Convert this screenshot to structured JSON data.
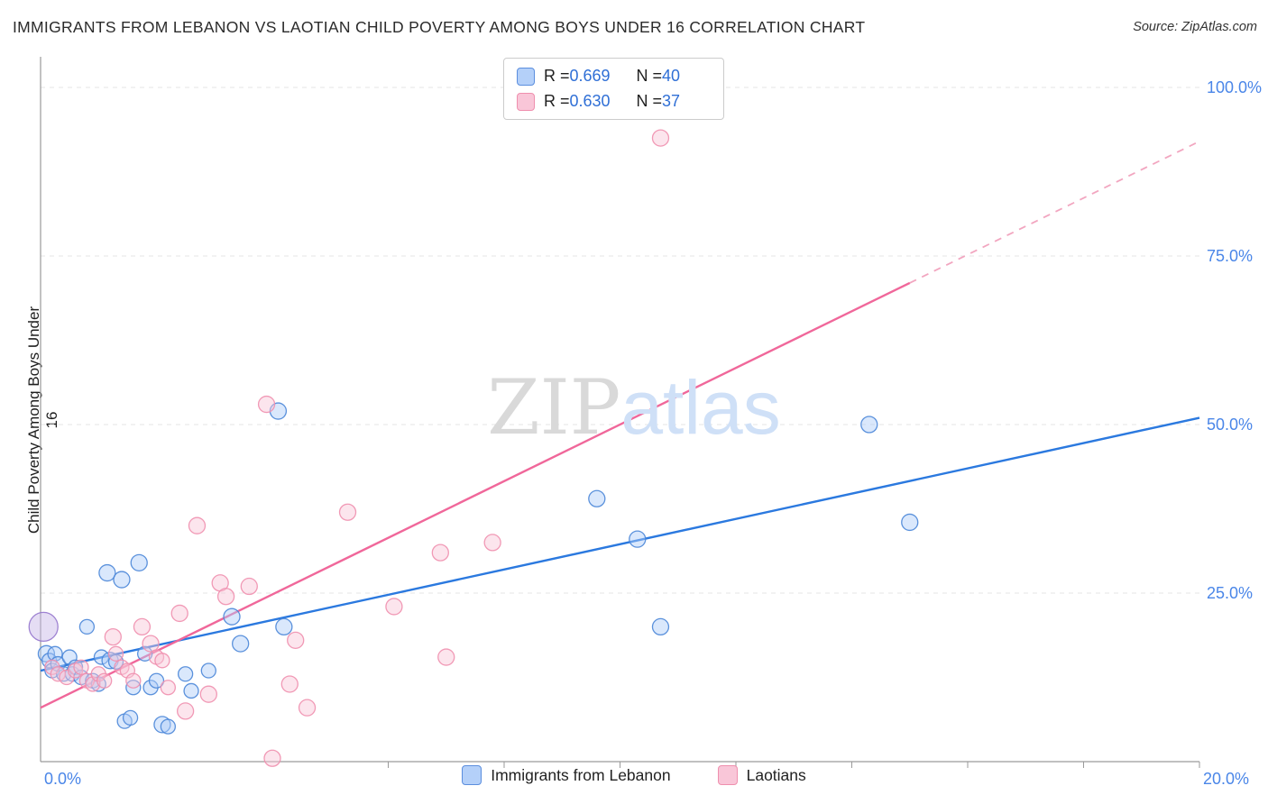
{
  "header": {
    "title": "IMMIGRANTS FROM LEBANON VS LAOTIAN CHILD POVERTY AMONG BOYS UNDER 16 CORRELATION CHART",
    "source": "Source: ZipAtlas.com"
  },
  "watermark": {
    "zip": "ZIP",
    "atlas": "atlas"
  },
  "y_axis_title": "Child Poverty Among Boys Under 16",
  "legend_box": {
    "rows": [
      {
        "series": "lebanon",
        "r_label": "R = ",
        "r": "0.669",
        "n_label": "N = ",
        "n": "40"
      },
      {
        "series": "laotians",
        "r_label": "R = ",
        "r": "0.630",
        "n_label": "N = ",
        "n": "37"
      }
    ]
  },
  "bottom_legend": [
    {
      "label": "Immigrants from Lebanon",
      "color": "#b4d0f9"
    },
    {
      "label": "Laotians",
      "color": "#f9c6d8"
    }
  ],
  "chart_data": {
    "type": "scatter",
    "title": "IMMIGRANTS FROM LEBANON VS LAOTIAN CHILD POVERTY AMONG BOYS UNDER 16 CORRELATION CHART",
    "xlabel": "Immigrants from Lebanon (%)",
    "ylabel": "Child Poverty Among Boys Under 16",
    "xlim": [
      0,
      20
    ],
    "ylim": [
      0,
      100
    ],
    "grid": "horizontal-dashed",
    "y_grid_values": [
      25,
      50,
      75,
      100
    ],
    "y_ticks": [
      {
        "v": 100,
        "label": "100.0%"
      },
      {
        "v": 75,
        "label": "75.0%"
      },
      {
        "v": 50,
        "label": "50.0%"
      },
      {
        "v": 25,
        "label": "25.0%"
      }
    ],
    "x_ticks": [
      {
        "v": 0,
        "label": "0.0%"
      },
      {
        "v": 20,
        "label": "20.0%"
      }
    ],
    "x_minor_ticks": [
      6,
      8,
      10,
      12,
      14,
      16,
      18,
      20
    ],
    "series": [
      {
        "name": "Immigrants from Lebanon",
        "r": 0.669,
        "n": 40,
        "fill": "#aecdf8",
        "stroke": "#4a86d8",
        "points": [
          [
            0.05,
            20,
            16,
            "#c5b3e6",
            "#9575cd"
          ],
          [
            0.1,
            16,
            9
          ],
          [
            0.15,
            15,
            8
          ],
          [
            0.2,
            13.5,
            8
          ],
          [
            0.25,
            16,
            8
          ],
          [
            0.3,
            14.5,
            8
          ],
          [
            0.4,
            13,
            8
          ],
          [
            0.5,
            15.5,
            8
          ],
          [
            0.55,
            13,
            8
          ],
          [
            0.6,
            14,
            8
          ],
          [
            0.7,
            12.5,
            8
          ],
          [
            0.8,
            20,
            8
          ],
          [
            0.9,
            12,
            8
          ],
          [
            1.0,
            11.5,
            8
          ],
          [
            1.05,
            15.5,
            8
          ],
          [
            1.15,
            28,
            9
          ],
          [
            1.2,
            15,
            9
          ],
          [
            1.3,
            14.8,
            8
          ],
          [
            1.4,
            27,
            9
          ],
          [
            1.45,
            6,
            8
          ],
          [
            1.55,
            6.5,
            8
          ],
          [
            1.6,
            11,
            8
          ],
          [
            1.7,
            29.5,
            9
          ],
          [
            1.8,
            16,
            8
          ],
          [
            1.9,
            11,
            8
          ],
          [
            2.0,
            12,
            8
          ],
          [
            2.1,
            5.5,
            9
          ],
          [
            2.2,
            5.2,
            8
          ],
          [
            2.5,
            13,
            8
          ],
          [
            2.6,
            10.5,
            8
          ],
          [
            2.9,
            13.5,
            8
          ],
          [
            3.3,
            21.5,
            9
          ],
          [
            3.45,
            17.5,
            9
          ],
          [
            4.1,
            52,
            9
          ],
          [
            4.2,
            20,
            9
          ],
          [
            9.6,
            39,
            9
          ],
          [
            10.3,
            33,
            9
          ],
          [
            10.7,
            20,
            9
          ],
          [
            14.3,
            50,
            9
          ],
          [
            15.0,
            35.5,
            9
          ]
        ]
      },
      {
        "name": "Laotians",
        "r": 0.63,
        "n": 37,
        "fill": "#f9c6d8",
        "stroke": "#ef8fae",
        "points": [
          [
            0.2,
            14,
            8
          ],
          [
            0.3,
            13,
            8
          ],
          [
            0.45,
            12.5,
            8
          ],
          [
            0.6,
            13.5,
            8
          ],
          [
            0.7,
            14,
            8
          ],
          [
            0.8,
            12,
            8
          ],
          [
            0.9,
            11.5,
            8
          ],
          [
            1.0,
            13,
            8
          ],
          [
            1.1,
            12,
            8
          ],
          [
            1.25,
            18.5,
            9
          ],
          [
            1.3,
            16,
            8
          ],
          [
            1.4,
            14,
            8
          ],
          [
            1.5,
            13.5,
            8
          ],
          [
            1.6,
            12,
            8
          ],
          [
            1.75,
            20,
            9
          ],
          [
            1.9,
            17.5,
            9
          ],
          [
            2.0,
            15.5,
            8
          ],
          [
            2.1,
            15,
            8
          ],
          [
            2.2,
            11,
            8
          ],
          [
            2.4,
            22,
            9
          ],
          [
            2.5,
            7.5,
            9
          ],
          [
            2.7,
            35,
            9
          ],
          [
            2.9,
            10,
            9
          ],
          [
            3.1,
            26.5,
            9
          ],
          [
            3.2,
            24.5,
            9
          ],
          [
            3.6,
            26,
            9
          ],
          [
            3.9,
            53,
            9
          ],
          [
            4.0,
            0.5,
            9
          ],
          [
            4.3,
            11.5,
            9
          ],
          [
            4.4,
            18,
            9
          ],
          [
            4.6,
            8,
            9
          ],
          [
            5.3,
            37,
            9
          ],
          [
            6.1,
            23,
            9
          ],
          [
            6.9,
            31,
            9
          ],
          [
            7.0,
            15.5,
            9
          ],
          [
            7.8,
            32.5,
            9
          ],
          [
            10.7,
            92.5,
            9
          ]
        ]
      }
    ],
    "trend_lines": [
      {
        "name": "lebanon-trend",
        "color": "#2b79df",
        "x1": 0,
        "y1": 13.5,
        "x2": 20,
        "y2": 51,
        "dash": false,
        "width": 2.4
      },
      {
        "name": "laotians-trend",
        "color": "#f0679a",
        "x1": 0,
        "y1": 8,
        "x2": 15,
        "y2": 71,
        "dash": false,
        "width": 2.4
      },
      {
        "name": "laotians-trend-extrapolated",
        "color": "#f2a6c0",
        "x1": 15,
        "y1": 71,
        "x2": 20,
        "y2": 92,
        "dash": true,
        "width": 1.8
      }
    ],
    "legend_position": "top-center"
  }
}
